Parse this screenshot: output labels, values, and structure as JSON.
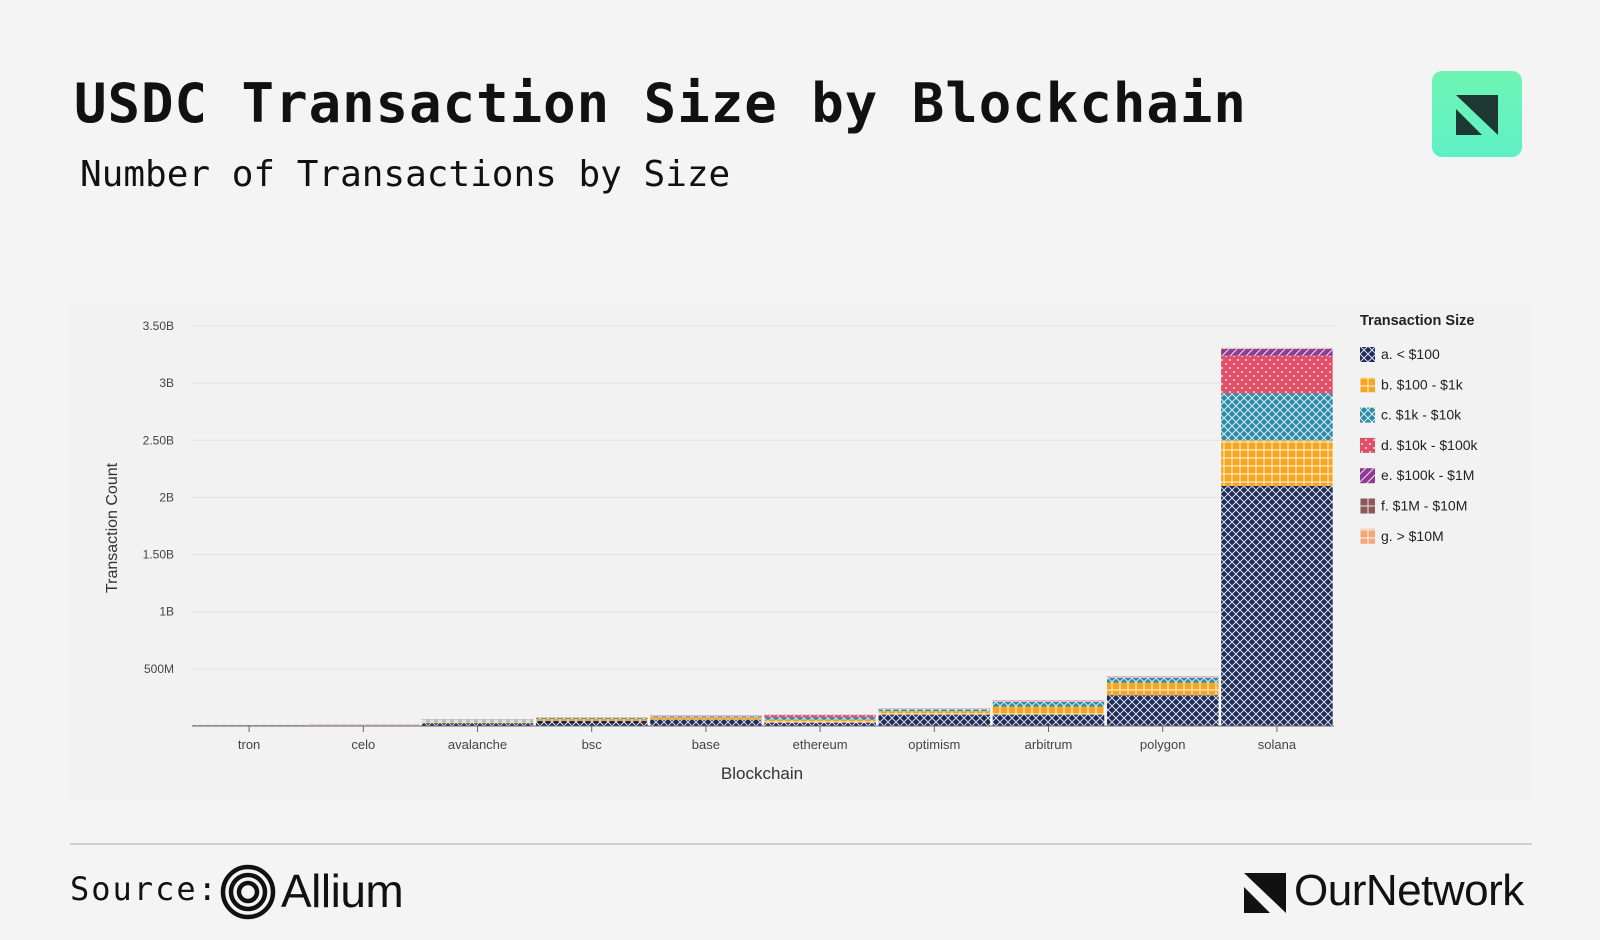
{
  "header": {
    "title": "USDC Transaction Size by Blockchain",
    "subtitle": "Number of Transactions by Size"
  },
  "footer": {
    "source_label": "Source:",
    "source_name": "Allium",
    "brand_name": "OurNetwork"
  },
  "icons": {
    "brand_tile": "ournetwork-mark-icon",
    "allium": "allium-rings-icon",
    "ournetwork": "ournetwork-mark-icon"
  },
  "colors": {
    "background": "#f4f4f4",
    "brand_tile": "#6ff5b4"
  },
  "chart_data": {
    "type": "bar",
    "stacked": true,
    "title": "",
    "xlabel": "Blockchain",
    "ylabel": "Transaction Count",
    "ylim": [
      0,
      3500000000
    ],
    "yticks": [
      500000000,
      1000000000,
      1500000000,
      2000000000,
      2500000000,
      3000000000,
      3500000000
    ],
    "ytick_labels": [
      "500M",
      "1B",
      "1.50B",
      "2B",
      "2.50B",
      "3B",
      "3.50B"
    ],
    "grid": true,
    "legend_title": "Transaction Size",
    "legend_position": "right",
    "categories": [
      "tron",
      "celo",
      "avalanche",
      "bsc",
      "base",
      "ethereum",
      "optimism",
      "arbitrum",
      "polygon",
      "solana"
    ],
    "series": [
      {
        "name": "a. < $100",
        "color": "#1c2b5a",
        "pattern": "crosshatch",
        "values": [
          2000000,
          3000000,
          25000000,
          45000000,
          55000000,
          30000000,
          100000000,
          100000000,
          270000000,
          2100000000
        ]
      },
      {
        "name": "b. $100 - $1k",
        "color": "#f5a623",
        "pattern": "grid",
        "values": [
          1000000,
          1000000,
          15000000,
          18000000,
          20000000,
          25000000,
          30000000,
          70000000,
          110000000,
          400000000
        ]
      },
      {
        "name": "c. $1k - $10k",
        "color": "#2a8aa8",
        "pattern": "crosshatch",
        "values": [
          500000,
          500000,
          8000000,
          8000000,
          10000000,
          20000000,
          15000000,
          40000000,
          40000000,
          410000000
        ]
      },
      {
        "name": "d. $10k - $100k",
        "color": "#e0506a",
        "pattern": "dots",
        "values": [
          200000,
          200000,
          2000000,
          2000000,
          3000000,
          20000000,
          2000000,
          5000000,
          5000000,
          330000000
        ]
      },
      {
        "name": "e. $100k - $1M",
        "color": "#8e3a8e",
        "pattern": "diagonal",
        "values": [
          100000,
          100000,
          500000,
          500000,
          500000,
          5000000,
          500000,
          1000000,
          1000000,
          60000000
        ]
      },
      {
        "name": "f. $1M - $10M",
        "color": "#8a5a5a",
        "pattern": "grid",
        "values": [
          0,
          0,
          100000,
          100000,
          100000,
          1000000,
          100000,
          200000,
          200000,
          5000000
        ]
      },
      {
        "name": "g. > $10M",
        "color": "#f4a77a",
        "pattern": "grid",
        "values": [
          0,
          0,
          0,
          0,
          0,
          100000,
          0,
          0,
          0,
          500000
        ]
      }
    ]
  }
}
